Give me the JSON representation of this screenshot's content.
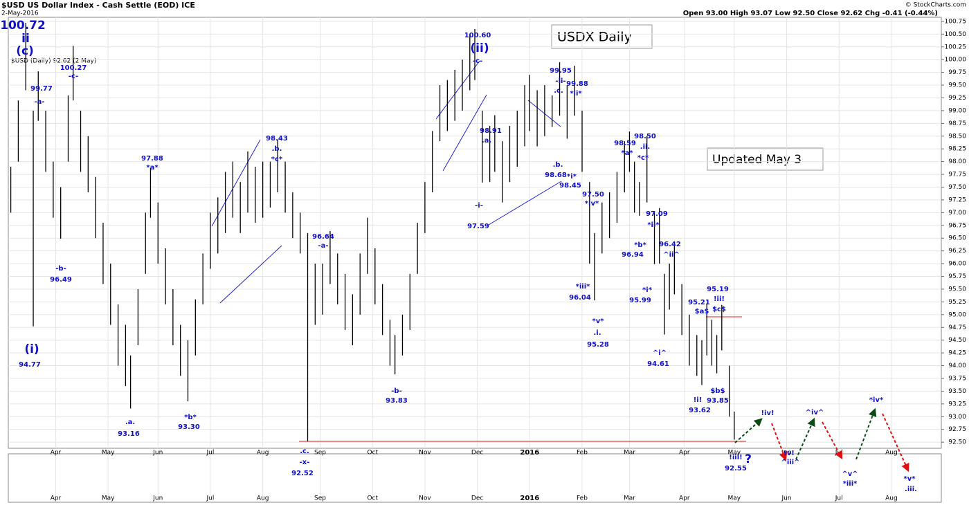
{
  "chart_data": {
    "type": "hilo",
    "title": "$USD US Dollar Index - Cash Settle (EOD) ICE",
    "date": "2-May-2016",
    "credit": "© StockCharts.com",
    "quote": "Open 93.00  High 93.07  Low 92.50  Close 92.62  Chg -0.41 (-0.44%)",
    "legend": "$USD (Daily) 92.62 (2 May)",
    "boxes": [
      "USDX Daily",
      "Updated May 3"
    ],
    "color": "#000000",
    "grid": true,
    "x": [
      0,
      3,
      6,
      9,
      11,
      14,
      17,
      20,
      23,
      25,
      28,
      31,
      34,
      37,
      40,
      43,
      46,
      48,
      51,
      54,
      56,
      59,
      62,
      65,
      68,
      71,
      74,
      77,
      80,
      83,
      86,
      89,
      92,
      95,
      98,
      101,
      104,
      107,
      110,
      113,
      116,
      119,
      122,
      125,
      128,
      131,
      134,
      137,
      140,
      143,
      146,
      149,
      152,
      154,
      157,
      160,
      163,
      166,
      169,
      172,
      175,
      178,
      181,
      184,
      186,
      189,
      192,
      194,
      197,
      200,
      203,
      206,
      208,
      211,
      214,
      217,
      220,
      223,
      226,
      229,
      232,
      234,
      237,
      240,
      243,
      246,
      248,
      250,
      252,
      255,
      258,
      260,
      262,
      264,
      266,
      269,
      272,
      275,
      277,
      279,
      281,
      283,
      285,
      288,
      290
    ],
    "high": [
      97.9,
      99.2,
      100.72,
      99.0,
      99.77,
      99.0,
      98.0,
      97.5,
      99.3,
      100.27,
      99.0,
      98.5,
      97.7,
      96.8,
      96.0,
      95.2,
      94.8,
      94.2,
      95.5,
      97.0,
      97.88,
      97.2,
      96.3,
      95.5,
      94.8,
      94.5,
      95.3,
      96.2,
      97.0,
      97.3,
      97.8,
      98.0,
      97.6,
      98.2,
      97.9,
      98.0,
      98.0,
      98.43,
      98.0,
      97.4,
      97.0,
      96.6,
      96.0,
      96.0,
      96.64,
      96.2,
      95.8,
      95.4,
      96.2,
      96.9,
      96.3,
      95.6,
      94.9,
      94.6,
      95.0,
      95.8,
      96.8,
      97.6,
      98.6,
      99.5,
      99.6,
      99.8,
      100.0,
      100.5,
      100.6,
      99.0,
      98.7,
      98.91,
      98.4,
      98.7,
      99.0,
      99.5,
      99.7,
      99.4,
      99.5,
      99.3,
      99.95,
      99.5,
      99.88,
      99.0,
      97.6,
      96.6,
      97.2,
      97.4,
      97.8,
      98.4,
      98.59,
      98.0,
      97.6,
      98.5,
      97.0,
      97.09,
      95.8,
      96.0,
      96.42,
      95.6,
      95.0,
      94.6,
      94.5,
      95.21,
      94.9,
      94.6,
      95.19,
      94.0,
      93.1
    ],
    "low": [
      97.0,
      98.0,
      99.4,
      94.77,
      98.8,
      97.8,
      96.9,
      96.49,
      98.0,
      99.2,
      97.8,
      97.4,
      96.5,
      95.6,
      94.8,
      94.0,
      93.6,
      93.16,
      94.4,
      95.8,
      96.9,
      96.0,
      95.2,
      94.4,
      93.8,
      93.3,
      94.2,
      95.2,
      95.9,
      96.2,
      96.6,
      96.9,
      96.6,
      97.0,
      96.8,
      96.9,
      97.1,
      97.4,
      97.0,
      96.5,
      96.2,
      92.52,
      94.8,
      95.0,
      95.6,
      95.2,
      94.7,
      94.4,
      95.0,
      95.8,
      95.2,
      94.6,
      94.0,
      93.83,
      94.2,
      94.7,
      95.8,
      96.6,
      97.4,
      98.4,
      98.6,
      98.8,
      99.0,
      99.4,
      99.6,
      97.59,
      97.6,
      97.8,
      97.2,
      97.6,
      97.9,
      98.3,
      98.6,
      98.3,
      98.5,
      98.68,
      98.9,
      98.45,
      98.9,
      97.8,
      96.0,
      95.28,
      96.2,
      96.5,
      96.8,
      97.4,
      97.8,
      97.0,
      96.94,
      97.2,
      95.99,
      96.0,
      94.61,
      95.1,
      95.4,
      94.6,
      94.0,
      93.8,
      93.62,
      94.2,
      94.0,
      93.85,
      94.3,
      93.0,
      92.55
    ],
    "xlim": [
      -1,
      373
    ],
    "xticks": [
      {
        "value": 18,
        "label": "Apr"
      },
      {
        "value": 39,
        "label": "May"
      },
      {
        "value": 59,
        "label": "Jun"
      },
      {
        "value": 80,
        "label": "Jul"
      },
      {
        "value": 101,
        "label": "Aug"
      },
      {
        "value": 124,
        "label": "Sep"
      },
      {
        "value": 145,
        "label": "Oct"
      },
      {
        "value": 166,
        "label": "Nov"
      },
      {
        "value": 187,
        "label": "Dec"
      },
      {
        "value": 208,
        "label": "2016"
      },
      {
        "value": 229,
        "label": "Feb"
      },
      {
        "value": 248,
        "label": "Mar"
      },
      {
        "value": 270,
        "label": "Apr"
      },
      {
        "value": 290,
        "label": "May"
      },
      {
        "value": 311,
        "label": "Jun"
      },
      {
        "value": 332,
        "label": "Jul"
      },
      {
        "value": 353,
        "label": "Aug"
      }
    ],
    "ylim": [
      92.38,
      100.83
    ],
    "yticks": [
      {
        "value": 92.5,
        "label": "92.50"
      },
      {
        "value": 92.75,
        "label": "92.75"
      },
      {
        "value": 93,
        "label": "93.00"
      },
      {
        "value": 93.25,
        "label": "93.25"
      },
      {
        "value": 93.5,
        "label": "93.50"
      },
      {
        "value": 93.75,
        "label": "93.75"
      },
      {
        "value": 94,
        "label": "94.00"
      },
      {
        "value": 94.25,
        "label": "94.25"
      },
      {
        "value": 94.5,
        "label": "94.50"
      },
      {
        "value": 94.75,
        "label": "94.75"
      },
      {
        "value": 95,
        "label": "95.00"
      },
      {
        "value": 95.25,
        "label": "95.25"
      },
      {
        "value": 95.5,
        "label": "95.50"
      },
      {
        "value": 95.75,
        "label": "95.75"
      },
      {
        "value": 96,
        "label": "96.00"
      },
      {
        "value": 96.25,
        "label": "96.25"
      },
      {
        "value": 96.5,
        "label": "96.50"
      },
      {
        "value": 96.75,
        "label": "96.75"
      },
      {
        "value": 97,
        "label": "97.00"
      },
      {
        "value": 97.25,
        "label": "97.25"
      },
      {
        "value": 97.5,
        "label": "97.50"
      },
      {
        "value": 97.75,
        "label": "97.75"
      },
      {
        "value": 98,
        "label": "98.00"
      },
      {
        "value": 98.25,
        "label": "98.25"
      },
      {
        "value": 98.5,
        "label": "98.50"
      },
      {
        "value": 98.75,
        "label": "98.75"
      },
      {
        "value": 99,
        "label": "99.00"
      },
      {
        "value": 99.25,
        "label": "99.25"
      },
      {
        "value": 99.5,
        "label": "99.50"
      },
      {
        "value": 99.75,
        "label": "99.75"
      },
      {
        "value": 100,
        "label": "100.00"
      },
      {
        "value": 100.25,
        "label": "100.25"
      },
      {
        "value": 100.5,
        "label": "100.50"
      },
      {
        "value": 100.75,
        "label": "100.75"
      }
    ],
    "annotations": [
      "100.72",
      "ii",
      "(c)",
      "(i)",
      "94.77",
      "99.77",
      "-a-",
      "100.27",
      "-c-",
      "-b-",
      "96.49",
      ".a.",
      "93.16",
      "97.88",
      "*a*",
      "*b*",
      "93.30",
      "98.43",
      ".b.",
      "*c*",
      ".c.",
      "-x-",
      "92.52",
      "96.64",
      "-a-",
      "-b-",
      "93.83",
      "100.60",
      "(ii)",
      "-c-",
      "98.91",
      ".a.",
      ".b.",
      "98.68",
      "-i-",
      "97.59",
      "99.95",
      "-ii-",
      ".c.",
      "99.88",
      "*ii*",
      "*i*",
      "98.45",
      "97.50",
      "*iv*",
      "*iii*",
      "96.04",
      "*v*",
      ".i.",
      "95.28",
      "98.59",
      "*a*",
      "98.50",
      ".ii.",
      "*c*",
      "97.09",
      "*ii*",
      "*b*",
      "96.94",
      "96.42",
      "^ii^",
      "*i*",
      "95.99",
      "^i^",
      "94.61",
      "95.21",
      "$a$",
      "95.19",
      "!ii!",
      "$c$",
      "!i!",
      "93.62",
      "$b$",
      "93.85",
      "!iii!",
      "?",
      "92.55",
      "!iv!",
      "!v!",
      "^iii^",
      "^iv^",
      "^v^",
      "*iii*",
      "*iv*",
      "*v*",
      ".iii."
    ]
  }
}
